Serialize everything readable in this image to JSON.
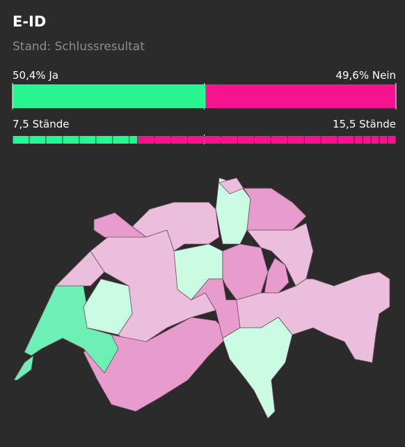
{
  "header": {
    "title": "E-ID",
    "subtitle": "Stand: Schlussresultat"
  },
  "chart_data": [
    {
      "type": "stacked_bar",
      "xlim": [
        0,
        100
      ],
      "series": [
        {
          "color": "#27f58f",
          "values": [
            50.4
          ],
          "value_labels": [
            "50,4% Ja"
          ]
        },
        {
          "color": "#f5148f",
          "values": [
            49.6
          ],
          "value_labels": [
            "49,6% Nein"
          ]
        }
      ]
    },
    {
      "type": "segment_bar",
      "xlim": [
        0,
        23
      ],
      "series": [
        {
          "color": "#27f58f",
          "values": [
            7.5
          ],
          "value_labels": [
            "7,5 Stände"
          ],
          "segments": [
            1,
            1,
            1,
            1,
            1,
            1,
            1,
            0.5
          ]
        },
        {
          "color": "#f5148f",
          "values": [
            15.5
          ],
          "value_labels": [
            "15,5 Stände"
          ],
          "segments": [
            1,
            1,
            1,
            1,
            1,
            1,
            1,
            1,
            1,
            1,
            1,
            1,
            1,
            0.5,
            0.5,
            0.5,
            0.5,
            0.5
          ]
        }
      ]
    }
  ]
}
